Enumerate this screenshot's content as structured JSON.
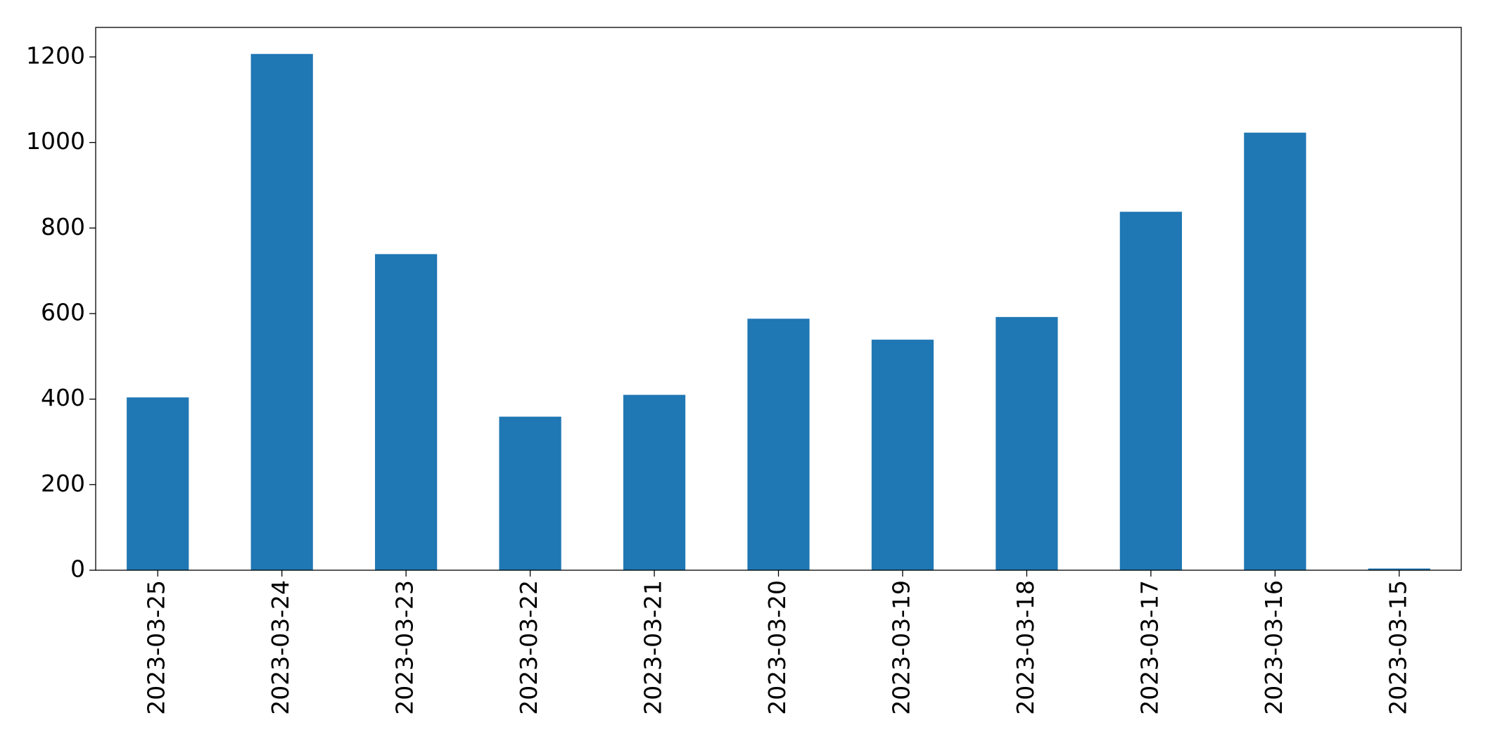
{
  "chart_data": {
    "type": "bar",
    "categories": [
      "2023-03-25",
      "2023-03-24",
      "2023-03-23",
      "2023-03-22",
      "2023-03-21",
      "2023-03-20",
      "2023-03-19",
      "2023-03-18",
      "2023-03-17",
      "2023-03-16",
      "2023-03-15"
    ],
    "values": [
      404,
      1207,
      739,
      359,
      410,
      588,
      539,
      592,
      838,
      1023,
      4
    ],
    "color": "#1f77b4",
    "ylim": [
      0,
      1269
    ],
    "yticks": [
      0,
      200,
      400,
      600,
      800,
      1000,
      1200
    ],
    "grid": false
  }
}
